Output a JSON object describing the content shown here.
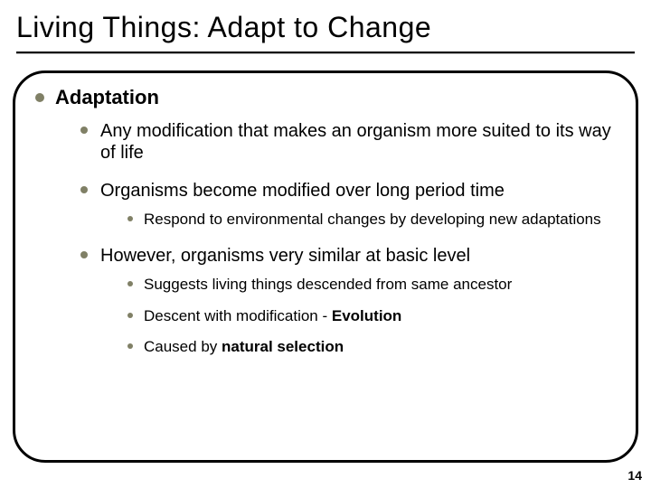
{
  "colors": {
    "bullet": "#808066",
    "rule": "#000000",
    "rule_shadow": "#bfbfbf",
    "text": "#000000",
    "background": "#ffffff"
  },
  "title": "Living Things:  Adapt to Change",
  "page_number": "14",
  "h1": "Adaptation",
  "b1": "Any modification that makes an organism more suited to its way of life",
  "b2": "Organisms become modified over long period time",
  "b2_1": "Respond to environmental changes by developing new adaptations",
  "b3": "However, organisms very similar at basic level",
  "b3_1": "Suggests living things descended from same ancestor",
  "b3_2a": "Descent with modification - ",
  "b3_2b": "Evolution",
  "b3_3a": "Caused by ",
  "b3_3b": "natural selection"
}
